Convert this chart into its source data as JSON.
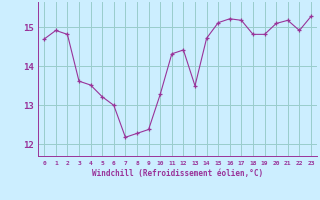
{
  "x": [
    0,
    1,
    2,
    3,
    4,
    5,
    6,
    7,
    8,
    9,
    10,
    11,
    12,
    13,
    14,
    15,
    16,
    17,
    18,
    19,
    20,
    21,
    22,
    23
  ],
  "y": [
    14.7,
    14.92,
    14.82,
    13.62,
    13.52,
    13.22,
    13.0,
    12.18,
    12.28,
    12.38,
    13.28,
    14.32,
    14.42,
    13.5,
    14.72,
    15.12,
    15.22,
    15.18,
    14.82,
    14.82,
    15.1,
    15.18,
    14.92,
    15.28
  ],
  "line_color": "#993399",
  "marker_color": "#993399",
  "bg_color": "#cceeff",
  "grid_color": "#99cccc",
  "xlabel": "Windchill (Refroidissement éolien,°C)",
  "xlabel_color": "#993399",
  "tick_color": "#993399",
  "yticks": [
    12,
    13,
    14,
    15
  ],
  "xticks": [
    0,
    1,
    2,
    3,
    4,
    5,
    6,
    7,
    8,
    9,
    10,
    11,
    12,
    13,
    14,
    15,
    16,
    17,
    18,
    19,
    20,
    21,
    22,
    23
  ],
  "ylim": [
    11.7,
    15.65
  ],
  "xlim": [
    -0.5,
    23.5
  ]
}
